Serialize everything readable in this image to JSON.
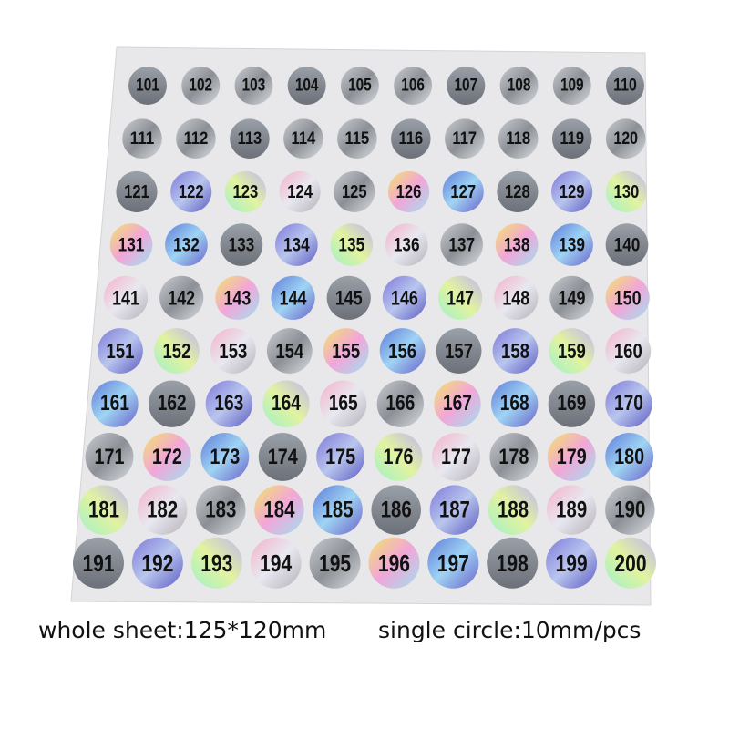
{
  "stickers": [
    [
      101,
      102,
      103,
      104,
      105,
      106,
      107,
      108,
      109,
      110
    ],
    [
      111,
      112,
      113,
      114,
      115,
      116,
      117,
      118,
      119,
      120
    ],
    [
      121,
      122,
      123,
      124,
      125,
      126,
      127,
      128,
      129,
      130
    ],
    [
      131,
      132,
      133,
      134,
      135,
      136,
      137,
      138,
      139,
      140
    ],
    [
      141,
      142,
      143,
      144,
      145,
      146,
      147,
      148,
      149,
      150
    ],
    [
      151,
      152,
      153,
      154,
      155,
      156,
      157,
      158,
      159,
      160
    ],
    [
      161,
      162,
      163,
      164,
      165,
      166,
      167,
      168,
      169,
      170
    ],
    [
      171,
      172,
      173,
      174,
      175,
      176,
      177,
      178,
      179,
      180
    ],
    [
      181,
      182,
      183,
      184,
      185,
      186,
      187,
      188,
      189,
      190
    ],
    [
      191,
      192,
      193,
      194,
      195,
      196,
      197,
      198,
      199,
      200
    ]
  ],
  "caption": {
    "sheet": "whole sheet:125*120mm",
    "circle": "single circle:10mm/pcs"
  }
}
